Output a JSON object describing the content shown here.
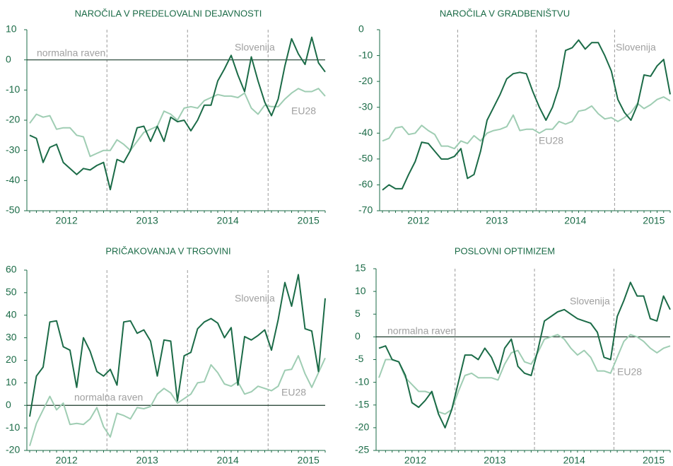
{
  "chart_data": [
    {
      "type": "line",
      "title": "NAROČILA V PREDELOVALNI DEJAVNOSTI",
      "categories": [
        null,
        null,
        null,
        null,
        null,
        null,
        "2012",
        null,
        null,
        null,
        null,
        null,
        null,
        null,
        null,
        null,
        null,
        null,
        "2013",
        null,
        null,
        null,
        null,
        null,
        null,
        null,
        null,
        null,
        null,
        null,
        "2014",
        null,
        null,
        null,
        null,
        null,
        null,
        null,
        null,
        null,
        null,
        null,
        "2015",
        null,
        null
      ],
      "ylim": [
        -50,
        10
      ],
      "yticks": [
        -50,
        -40,
        -30,
        -20,
        -10,
        0,
        10
      ],
      "reference_line": {
        "value": 0,
        "label": "normalna raven"
      },
      "series": [
        {
          "name": "Slovenija",
          "color": "#1b6b47",
          "values": [
            -25,
            -26,
            -34,
            -29,
            -28,
            -34,
            -36,
            -38,
            -36,
            -36.5,
            -35,
            -34,
            -43,
            -33,
            -34,
            -30,
            -22.5,
            -22,
            -27,
            -22,
            -27,
            -19,
            -20.5,
            -20,
            -23.5,
            -20,
            -15,
            -15,
            -7,
            -3,
            1.5,
            -5,
            -10.5,
            1,
            -7,
            -14,
            -18.5,
            -13,
            -2,
            7,
            2,
            -1.5,
            7.5,
            -1,
            -4
          ]
        },
        {
          "name": "EU28",
          "color": "#9fcdb3",
          "values": [
            -21,
            -18,
            -19,
            -18.5,
            -23,
            -22.5,
            -22.5,
            -25,
            -25.5,
            -32,
            -31,
            -30,
            -30,
            -26.5,
            -28,
            -30,
            -27,
            -24,
            -23,
            -22,
            -17,
            -18,
            -20,
            -16,
            -15.5,
            -16,
            -13.5,
            -12.5,
            -11.5,
            -12,
            -12,
            -12.5,
            -11,
            -16,
            -18,
            -15,
            -15.5,
            -15.5,
            -13,
            -11,
            -9.5,
            -10.5,
            -10.5,
            -9.5,
            -12
          ]
        }
      ]
    },
    {
      "type": "line",
      "title": "NAROČILA V GRADBENIŠTVU",
      "categories": [
        null,
        null,
        null,
        null,
        null,
        null,
        "2012",
        null,
        null,
        null,
        null,
        null,
        null,
        null,
        null,
        null,
        null,
        null,
        "2013",
        null,
        null,
        null,
        null,
        null,
        null,
        null,
        null,
        null,
        null,
        null,
        "2014",
        null,
        null,
        null,
        null,
        null,
        null,
        null,
        null,
        null,
        null,
        null,
        "2015",
        null,
        null
      ],
      "ylim": [
        -70,
        0
      ],
      "yticks": [
        -70,
        -60,
        -50,
        -40,
        -30,
        -20,
        -10,
        0
      ],
      "series": [
        {
          "name": "Slovenija",
          "color": "#1b6b47",
          "values": [
            -62,
            -60,
            -61.5,
            -61.5,
            -56,
            -51,
            -43.5,
            -44,
            -47,
            -50,
            -50,
            -49,
            -46,
            -57.5,
            -56,
            -47,
            -35,
            -30,
            -25,
            -19,
            -17,
            -16.5,
            -17,
            -24,
            -30,
            -35,
            -30,
            -22,
            -8,
            -7,
            -4,
            -7.5,
            -5,
            -5,
            -10,
            -16,
            -27,
            -32,
            -35,
            -29,
            -17.5,
            -18,
            -14,
            -11.5,
            -25
          ]
        },
        {
          "name": "EU28",
          "color": "#9fcdb3",
          "values": [
            -43,
            -42,
            -38,
            -37.5,
            -40.5,
            -40,
            -37,
            -39,
            -40.5,
            -45,
            -45,
            -46,
            -43,
            -44,
            -41,
            -43,
            -40,
            -39,
            -38.5,
            -37.5,
            -33,
            -39,
            -38.5,
            -38.5,
            -40,
            -38.5,
            -38.5,
            -35.5,
            -36.5,
            -35.5,
            -31.5,
            -31,
            -29.5,
            -32.5,
            -34.5,
            -34,
            -35.5,
            -34,
            -32,
            -28.5,
            -30.5,
            -29,
            -27,
            -26,
            -27.5
          ]
        }
      ]
    },
    {
      "type": "line",
      "title": "PRIČAKOVANJA V TRGOVINI",
      "categories": [
        null,
        null,
        null,
        null,
        null,
        null,
        "2012",
        null,
        null,
        null,
        null,
        null,
        null,
        null,
        null,
        null,
        null,
        null,
        "2013",
        null,
        null,
        null,
        null,
        null,
        null,
        null,
        null,
        null,
        null,
        null,
        "2014",
        null,
        null,
        null,
        null,
        null,
        null,
        null,
        null,
        null,
        null,
        null,
        "2015",
        null,
        null
      ],
      "ylim": [
        -20,
        60
      ],
      "yticks": [
        -20,
        -10,
        0,
        10,
        20,
        30,
        40,
        50,
        60
      ],
      "reference_line": {
        "value": 0,
        "label": "normalna raven"
      },
      "series": [
        {
          "name": "Slovenija",
          "color": "#1b6b47",
          "values": [
            -5,
            13,
            17,
            37,
            37.5,
            26,
            24.5,
            8,
            30,
            24,
            15,
            13,
            16,
            9,
            37,
            37.5,
            32,
            33.5,
            28.5,
            13,
            29,
            28.5,
            2,
            22,
            23.5,
            34,
            37,
            38.5,
            36.5,
            30,
            34.5,
            9,
            30.5,
            29,
            31,
            33.5,
            24.5,
            38,
            54.5,
            44,
            58,
            34,
            33,
            15,
            47.5
          ]
        },
        {
          "name": "EU28",
          "color": "#9fcdb3",
          "values": [
            -18,
            -8,
            -2,
            4,
            -2,
            1,
            -8.5,
            -8,
            -8.5,
            -6,
            -1,
            -9.5,
            -14,
            -3.5,
            -4.5,
            -6,
            -1,
            -1.5,
            -0.5,
            5,
            7.5,
            5.5,
            1,
            3,
            5,
            10,
            10.5,
            18,
            14.5,
            9.5,
            8.5,
            10.5,
            5,
            6,
            8.5,
            7.5,
            6.5,
            8.5,
            15.5,
            16,
            22,
            14,
            8,
            14.5,
            21
          ]
        }
      ]
    },
    {
      "type": "line",
      "title": "POSLOVNI OPTIMIZEM",
      "categories": [
        null,
        null,
        null,
        null,
        null,
        null,
        "2012",
        null,
        null,
        null,
        null,
        null,
        null,
        null,
        null,
        null,
        null,
        null,
        "2013",
        null,
        null,
        null,
        null,
        null,
        null,
        null,
        null,
        null,
        null,
        null,
        "2014",
        null,
        null,
        null,
        null,
        null,
        null,
        null,
        null,
        null,
        null,
        null,
        "2015",
        null,
        null
      ],
      "ylim": [
        -25,
        15
      ],
      "yticks": [
        -25,
        -20,
        -15,
        -10,
        -5,
        0,
        5,
        10,
        15
      ],
      "reference_line": {
        "value": 0,
        "label": "normalna raven"
      },
      "series": [
        {
          "name": "Slovenija",
          "color": "#1b6b47",
          "values": [
            -2.5,
            -2,
            -5,
            -5.5,
            -8.5,
            -14.5,
            -15.5,
            -14,
            -12,
            -17,
            -20,
            -16,
            -10,
            -4,
            -4,
            -5,
            -2.5,
            -4.5,
            -8,
            -2.5,
            -0.5,
            -6.5,
            -8,
            -8.5,
            -3,
            3.5,
            4.5,
            5.5,
            6,
            5,
            4,
            3.5,
            3,
            1,
            -4.5,
            -5,
            4.5,
            8,
            12,
            9,
            9,
            4,
            3.5,
            9,
            6
          ]
        },
        {
          "name": "EU28",
          "color": "#9fcdb3",
          "values": [
            -9,
            -5,
            -5,
            -5.5,
            -9,
            -10.5,
            -12,
            -12,
            -12.5,
            -16.5,
            -17,
            -16,
            -12,
            -8.5,
            -8,
            -9,
            -9,
            -9,
            -9.5,
            -6,
            -3.5,
            -3,
            -5.5,
            -6,
            -3.5,
            -0.5,
            0,
            0.5,
            -0.5,
            -2.5,
            -4,
            -3,
            -4.5,
            -7.5,
            -7.5,
            -8,
            -4.5,
            -1,
            0.5,
            0,
            -1,
            -2.5,
            -3.5,
            -2.5,
            -2
          ]
        }
      ]
    }
  ]
}
